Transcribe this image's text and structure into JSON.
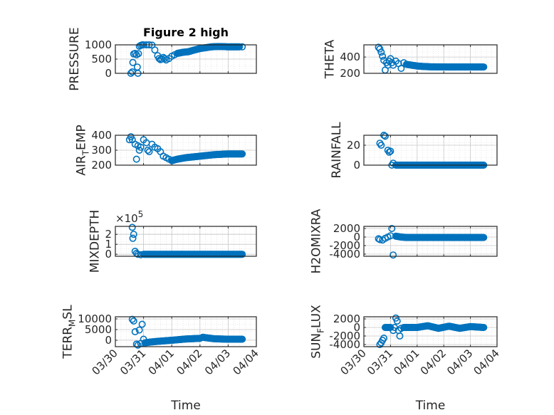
{
  "figure": {
    "title": "Figure 2 high",
    "marker_color": "#0072bd",
    "axis_color": "#262626",
    "grid_color": "#d9d9d9"
  },
  "chart_data": [
    {
      "type": "scatter",
      "panel": "top-left",
      "title": "Figure 2 high",
      "ylabel": "PRESSURE",
      "xlabel": "",
      "xlim": [
        0,
        5
      ],
      "ylim": [
        0,
        1000
      ],
      "yticks": [
        0,
        500,
        1000
      ],
      "ytick_labels": [
        "0",
        "500",
        "1000"
      ],
      "xtick_labels": [],
      "grid": true,
      "x": [
        0.55,
        0.6,
        0.62,
        0.65,
        0.7,
        0.75,
        0.78,
        0.8,
        0.82,
        0.85,
        0.9,
        0.95,
        1.0,
        1.1,
        1.2,
        1.3,
        1.4,
        1.5,
        1.55,
        1.6,
        1.65,
        1.7,
        1.75,
        1.8,
        1.9,
        2.0,
        2.1,
        2.2,
        2.4,
        2.6,
        2.8,
        3.0,
        3.2,
        3.4,
        3.6,
        3.8,
        4.0,
        4.2,
        4.4,
        4.5
      ],
      "y": [
        0,
        50,
        380,
        680,
        700,
        650,
        220,
        0,
        690,
        950,
        980,
        1000,
        1000,
        1000,
        1000,
        990,
        820,
        620,
        520,
        480,
        500,
        560,
        520,
        470,
        520,
        600,
        650,
        700,
        740,
        760,
        820,
        870,
        900,
        930,
        940,
        940,
        930,
        930,
        930,
        930
      ]
    },
    {
      "type": "scatter",
      "panel": "top-right",
      "ylabel": "THETA",
      "xlabel": "",
      "xlim": [
        0,
        5
      ],
      "ylim": [
        200,
        550
      ],
      "yticks": [
        200,
        400
      ],
      "ytick_labels": [
        "200",
        "400"
      ],
      "xtick_labels": [],
      "grid": true,
      "x": [
        0.55,
        0.6,
        0.65,
        0.7,
        0.75,
        0.8,
        0.85,
        0.9,
        0.95,
        1.0,
        1.05,
        1.1,
        1.2,
        1.3,
        1.4,
        1.5,
        1.6,
        1.8,
        2.0,
        2.2,
        2.5,
        3.0,
        3.5,
        4.0,
        4.5
      ],
      "y": [
        520,
        500,
        460,
        410,
        360,
        240,
        330,
        300,
        350,
        380,
        330,
        300,
        350,
        320,
        260,
        330,
        310,
        300,
        290,
        285,
        280,
        278,
        278,
        278,
        278
      ]
    },
    {
      "type": "scatter",
      "panel": "row2-left",
      "ylabel": "AIR_T EMP",
      "ylabel_display": "AIR",
      "ylabel_sub": "T",
      "ylabel_tail": "EMP",
      "xlabel": "",
      "xlim": [
        0,
        5
      ],
      "ylim": [
        200,
        400
      ],
      "yticks": [
        200,
        300,
        400
      ],
      "ytick_labels": [
        "200",
        "300",
        "400"
      ],
      "xtick_labels": [],
      "grid": true,
      "x": [
        0.5,
        0.55,
        0.6,
        0.7,
        0.75,
        0.8,
        0.85,
        0.9,
        1.0,
        1.1,
        1.15,
        1.2,
        1.3,
        1.4,
        1.5,
        1.6,
        1.7,
        1.8,
        1.9,
        2.0,
        2.2,
        2.5,
        3.0,
        3.5,
        4.0,
        4.5
      ],
      "y": [
        370,
        390,
        370,
        340,
        240,
        330,
        300,
        320,
        370,
        350,
        300,
        290,
        340,
        320,
        310,
        290,
        260,
        250,
        240,
        230,
        240,
        250,
        260,
        270,
        275,
        275
      ]
    },
    {
      "type": "scatter",
      "panel": "row2-right",
      "ylabel": "RAINFALL",
      "xlabel": "",
      "xlim": [
        0,
        5
      ],
      "ylim": [
        0,
        30
      ],
      "yticks": [
        0,
        20
      ],
      "ytick_labels": [
        "0",
        "20"
      ],
      "xtick_labels": [],
      "grid": true,
      "x": [
        0.6,
        0.65,
        0.75,
        0.8,
        0.9,
        0.95,
        1.0,
        1.05,
        1.1,
        1.2,
        1.5,
        2.0,
        2.5,
        3.0,
        3.5,
        4.0,
        4.5
      ],
      "y": [
        22,
        20,
        30,
        29,
        15,
        13,
        14,
        0,
        2,
        0,
        0,
        0,
        0,
        0,
        0,
        0,
        0
      ]
    },
    {
      "type": "scatter",
      "panel": "row3-left",
      "ylabel": "MIXDEPTH",
      "y_exponent_label": "×10^5",
      "y_exponent_base": "×10",
      "y_exponent_power": "5",
      "xlabel": "",
      "xlim": [
        0,
        5
      ],
      "ylim": [
        -0.2,
        2.8
      ],
      "yticks": [
        0,
        1,
        2
      ],
      "ytick_labels": [
        "0",
        "1",
        "2"
      ],
      "xtick_labels": [],
      "grid": true,
      "x": [
        0.6,
        0.62,
        0.65,
        0.7,
        0.75,
        0.8,
        0.9,
        1.0,
        1.5,
        2.0,
        2.5,
        3.0,
        3.5,
        4.0,
        4.5
      ],
      "y": [
        2.7,
        1.6,
        2.0,
        0.3,
        0.1,
        0.0,
        -0.05,
        0.0,
        0.0,
        0.0,
        0.0,
        0.0,
        0.0,
        0.0,
        0.0
      ]
    },
    {
      "type": "scatter",
      "panel": "row3-right",
      "ylabel": "H2OMIXRA",
      "xlabel": "",
      "xlim": [
        0,
        5
      ],
      "ylim": [
        -4500,
        2500
      ],
      "yticks": [
        -4000,
        -2000,
        0,
        2000
      ],
      "ytick_labels": [
        "-4000",
        "-2000",
        "0",
        "2000"
      ],
      "xtick_labels": [],
      "grid": true,
      "x": [
        0.55,
        0.6,
        0.7,
        0.8,
        0.9,
        1.0,
        1.05,
        1.1,
        1.2,
        1.4,
        1.6,
        2.0,
        2.5,
        3.0,
        3.5,
        4.0,
        4.5
      ],
      "y": [
        -400,
        -600,
        -700,
        -300,
        0,
        300,
        2000,
        -4200,
        200,
        0,
        -100,
        -100,
        -100,
        -100,
        -100,
        -100,
        -100
      ]
    },
    {
      "type": "scatter",
      "panel": "bottom-left",
      "ylabel": "TERR_M SL",
      "ylabel_display": "TERR",
      "ylabel_sub": "M",
      "ylabel_tail": "SL",
      "xlabel": "Time",
      "xlim": [
        0,
        5
      ],
      "ylim": [
        -3000,
        11000
      ],
      "yticks": [
        0,
        5000,
        10000
      ],
      "ytick_labels": [
        "0",
        "5000",
        "10000"
      ],
      "xtick_labels": [
        "03/30",
        "03/31",
        "04/01",
        "04/02",
        "04/03",
        "04/04"
      ],
      "grid": true,
      "x": [
        0.6,
        0.65,
        0.7,
        0.75,
        0.8,
        0.85,
        0.9,
        0.95,
        1.0,
        1.05,
        1.2,
        1.5,
        2.0,
        2.5,
        3.0,
        3.1,
        3.5,
        4.0,
        4.5
      ],
      "y": [
        9800,
        9000,
        4000,
        -1800,
        -2300,
        4800,
        -1500,
        7500,
        500,
        -1200,
        -900,
        -500,
        0,
        600,
        900,
        1400,
        700,
        500,
        500
      ]
    },
    {
      "type": "scatter",
      "panel": "bottom-right",
      "ylabel": "SUN_F LUX",
      "ylabel_display": "SUN",
      "ylabel_sub": "F",
      "ylabel_tail": "LUX",
      "xlabel": "Time",
      "xlim": [
        0,
        5
      ],
      "ylim": [
        -4500,
        2500
      ],
      "yticks": [
        -4000,
        -2000,
        0,
        2000
      ],
      "ytick_labels": [
        "-4000",
        "-2000",
        "0",
        "2000"
      ],
      "xtick_labels": [
        "03/30",
        "03/31",
        "04/01",
        "04/02",
        "04/03",
        "04/04"
      ],
      "grid": true,
      "x": [
        0.6,
        0.65,
        0.7,
        0.75,
        0.8,
        1.0,
        1.1,
        1.15,
        1.2,
        1.25,
        1.3,
        1.35,
        1.4,
        1.5,
        1.8,
        2.0,
        2.4,
        2.8,
        3.2,
        3.6,
        4.0,
        4.5
      ],
      "y": [
        -4000,
        -3600,
        -3000,
        -2500,
        0,
        0,
        -700,
        0,
        2200,
        1500,
        -700,
        -2000,
        -200,
        0,
        0,
        0,
        400,
        -200,
        300,
        -200,
        200,
        0
      ]
    }
  ]
}
